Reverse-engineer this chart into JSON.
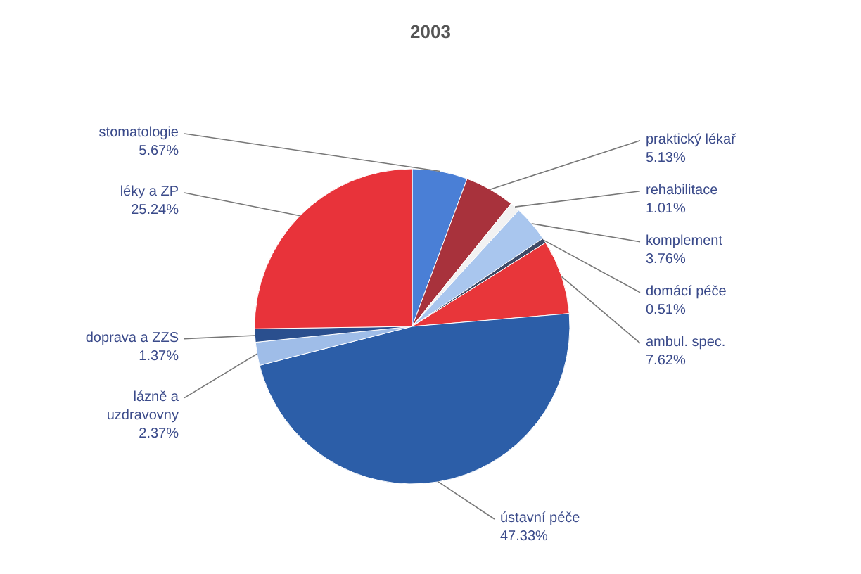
{
  "chart_data": {
    "type": "pie",
    "title": "2003",
    "categories": [
      "stomatologie",
      "praktický lékař",
      "rehabilitace",
      "komplement",
      "domácí péče",
      "ambul. spec.",
      "ústavní péče",
      "lázně a uzdravovny",
      "doprava a ZZS",
      "léky a ZP"
    ],
    "values": [
      5.67,
      5.13,
      1.01,
      3.76,
      0.51,
      7.62,
      47.33,
      2.37,
      1.37,
      25.24
    ],
    "value_labels": [
      "5.67%",
      "5.13%",
      "1.01%",
      "3.76%",
      "0.51%",
      "7.62%",
      "47.33%",
      "2.37%",
      "1.37%",
      "25.24%"
    ],
    "colors": [
      "#4a7fd6",
      "#a8323c",
      "#f2f2f2",
      "#a9c6ee",
      "#3d4a66",
      "#e8363a",
      "#2c5ea8",
      "#9fbde8",
      "#2a4f8e",
      "#e8333a"
    ]
  }
}
